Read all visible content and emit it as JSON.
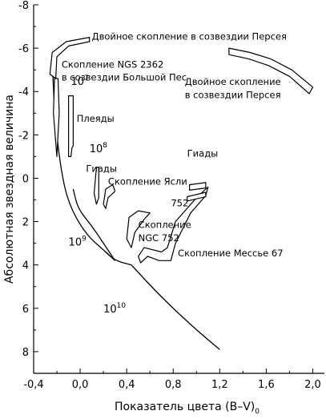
{
  "chart_data": {
    "type": "line",
    "title": "",
    "xlabel": "Показатель цвета (B–V)",
    "xlabel_subscript": "0",
    "ylabel": "Абсолютная звездная величина",
    "xlim": [
      -0.4,
      2.1
    ],
    "ylim": [
      9,
      -8
    ],
    "y_inverted": true,
    "x_ticks": [
      "-0,4",
      "0,0",
      "0,4",
      "0,8",
      "1,2",
      "1,6",
      "2,0"
    ],
    "y_ticks": [
      "-8",
      "-6",
      "-4",
      "-2",
      "0",
      "2",
      "4",
      "6",
      "8"
    ],
    "grid": false,
    "legend": "none",
    "isochrones": [
      {
        "label": "10",
        "exponent": "7",
        "points": [
          [
            -0.24,
            -5.4
          ],
          [
            -0.22,
            -3.0
          ],
          [
            -0.17,
            -0.5
          ],
          [
            -0.1,
            1.2
          ],
          [
            0.05,
            2.6
          ],
          [
            0.22,
            3.4
          ],
          [
            0.3,
            3.8
          ]
        ]
      },
      {
        "label": "10",
        "exponent": "8",
        "points": [
          [
            -0.06,
            0.5
          ],
          [
            -0.02,
            1.4
          ],
          [
            0.1,
            2.2
          ],
          [
            0.2,
            3.0
          ],
          [
            0.3,
            3.8
          ]
        ]
      },
      {
        "label": "10",
        "exponent": "9",
        "points": [
          [
            0.22,
            3.4
          ],
          [
            0.3,
            3.8
          ],
          [
            0.44,
            4.0
          ]
        ]
      },
      {
        "label": "10",
        "exponent": "10",
        "points": [
          [
            0.44,
            4.0
          ],
          [
            0.7,
            5.5
          ],
          [
            1.0,
            7.0
          ],
          [
            1.2,
            7.9
          ]
        ]
      }
    ],
    "clusters": [
      {
        "name": "Двойное скопление в созвездии Персея",
        "outline": [
          [
            -0.26,
            -4.8
          ],
          [
            -0.24,
            -5.8
          ],
          [
            -0.12,
            -6.3
          ],
          [
            0.08,
            -6.5
          ],
          [
            0.08,
            -6.3
          ],
          [
            -0.1,
            -6.1
          ],
          [
            -0.2,
            -5.6
          ],
          [
            -0.21,
            -4.6
          ]
        ]
      },
      {
        "name": "Скопление NGS 2362 в созвездии Большой Пес",
        "outline": [
          [
            -0.22,
            -4.6
          ],
          [
            -0.23,
            -3.0
          ],
          [
            -0.2,
            -1.0
          ],
          [
            -0.18,
            -3.0
          ],
          [
            -0.19,
            -4.6
          ]
        ]
      },
      {
        "name": "Плеяды",
        "outline": [
          [
            -0.1,
            -3.8
          ],
          [
            -0.06,
            -3.8
          ],
          [
            -0.06,
            -1.5
          ],
          [
            -0.07,
            -1.4
          ],
          [
            -0.08,
            -1.0
          ],
          [
            -0.1,
            -1.0
          ]
        ]
      },
      {
        "name": "Гиады",
        "outline": [
          [
            0.12,
            0.7
          ],
          [
            0.14,
            -0.5
          ],
          [
            0.16,
            -0.5
          ],
          [
            0.16,
            0.9
          ],
          [
            0.14,
            1.2
          ]
        ]
      },
      {
        "name": "Скопление Ясли",
        "outline": [
          [
            0.2,
            1.2
          ],
          [
            0.22,
            0.5
          ],
          [
            0.28,
            0.3
          ],
          [
            0.3,
            0.6
          ],
          [
            0.24,
            0.9
          ],
          [
            0.22,
            1.4
          ]
        ]
      },
      {
        "name": "Скопление NGC 752",
        "outline": [
          [
            0.4,
            2.8
          ],
          [
            0.42,
            1.8
          ],
          [
            0.5,
            1.5
          ],
          [
            0.6,
            1.6
          ],
          [
            0.55,
            1.9
          ],
          [
            0.47,
            2.5
          ],
          [
            0.44,
            3.2
          ]
        ]
      },
      {
        "name": "Скопление Мессье 67",
        "outline": [
          [
            0.5,
            3.6
          ],
          [
            0.55,
            3.2
          ],
          [
            0.7,
            3.4
          ],
          [
            0.75,
            3.2
          ],
          [
            0.82,
            2.0
          ],
          [
            1.0,
            0.9
          ],
          [
            1.1,
            0.4
          ],
          [
            1.08,
            0.8
          ],
          [
            0.95,
            1.6
          ],
          [
            0.82,
            3.0
          ],
          [
            0.78,
            3.8
          ],
          [
            0.68,
            3.8
          ],
          [
            0.58,
            3.6
          ],
          [
            0.52,
            3.9
          ]
        ]
      },
      {
        "name": "Гиады",
        "outline": [
          [
            0.94,
            0.3
          ],
          [
            1.08,
            0.2
          ],
          [
            1.08,
            0.45
          ],
          [
            0.94,
            0.55
          ]
        ]
      },
      {
        "name": "752",
        "outline": [
          [
            0.92,
            0.85
          ],
          [
            1.08,
            0.65
          ],
          [
            1.08,
            0.85
          ],
          [
            0.92,
            1.05
          ]
        ]
      },
      {
        "name": "Двойное скопление в созвездии Персея",
        "outline": [
          [
            1.28,
            -6.0
          ],
          [
            1.46,
            -5.8
          ],
          [
            1.64,
            -5.5
          ],
          [
            1.82,
            -5.0
          ],
          [
            2.0,
            -4.2
          ],
          [
            1.97,
            -3.9
          ],
          [
            1.8,
            -4.7
          ],
          [
            1.62,
            -5.2
          ],
          [
            1.45,
            -5.5
          ],
          [
            1.28,
            -5.7
          ]
        ]
      }
    ],
    "annotations": [
      {
        "text": "Двойное скопление в созвездии Персея",
        "x": 0.1,
        "y": -6.4,
        "align": "start"
      },
      {
        "text": "Скопление NGS 2362",
        "x": -0.16,
        "y": -5.1,
        "align": "start"
      },
      {
        "text": "в созвездии Большой Пес",
        "x": -0.16,
        "y": -4.5,
        "align": "start"
      },
      {
        "text": "Двойное скопление",
        "x": 0.9,
        "y": -4.3,
        "align": "start"
      },
      {
        "text": "в созвездии Персея",
        "x": 0.9,
        "y": -3.7,
        "align": "start"
      },
      {
        "text": "Плеяды",
        "x": -0.03,
        "y": -2.6,
        "align": "start"
      },
      {
        "text": "Гиады",
        "x": 0.05,
        "y": -0.3,
        "align": "start"
      },
      {
        "text": "Скопление Ясли",
        "x": 0.24,
        "y": 0.3,
        "align": "start"
      },
      {
        "text": "Гиады",
        "x": 0.92,
        "y": -1.0,
        "align": "start"
      },
      {
        "text": "752",
        "x": 0.78,
        "y": 1.3,
        "align": "start"
      },
      {
        "text": "Скопление",
        "x": 0.5,
        "y": 2.3,
        "align": "start"
      },
      {
        "text": "NGC 752",
        "x": 0.5,
        "y": 2.9,
        "align": "start"
      },
      {
        "text": "Скопление Мессье 67",
        "x": 0.84,
        "y": 3.6,
        "align": "start"
      }
    ],
    "age_labels": [
      {
        "base": "10",
        "exponent": "7",
        "x": -0.08,
        "y": -4.3
      },
      {
        "base": "10",
        "exponent": "8",
        "x": 0.08,
        "y": -1.2
      },
      {
        "base": "10",
        "exponent": "9",
        "x": -0.1,
        "y": 3.1
      },
      {
        "base": "10",
        "exponent": "10",
        "x": 0.2,
        "y": 6.2
      }
    ]
  }
}
